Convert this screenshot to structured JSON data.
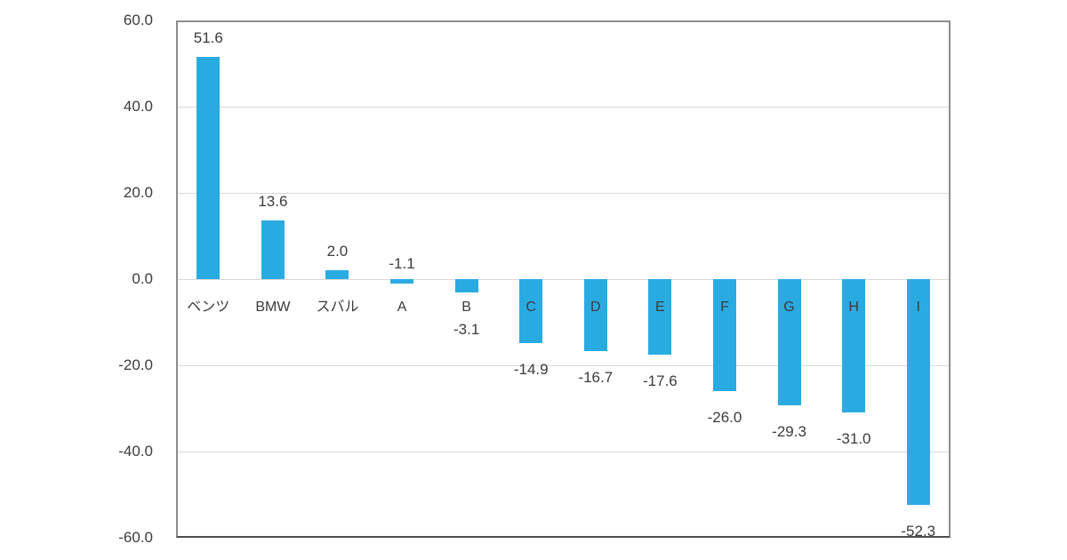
{
  "chart_data": {
    "type": "bar",
    "title": "",
    "categories": [
      "ベンツ",
      "BMW",
      "スバル",
      "A",
      "B",
      "C",
      "D",
      "E",
      "F",
      "G",
      "H",
      "I"
    ],
    "values": [
      51.6,
      13.6,
      2.0,
      -1.1,
      -3.1,
      -14.9,
      -16.7,
      -17.6,
      -26.0,
      -29.3,
      -31.0,
      -52.3
    ],
    "data_labels": [
      "51.6",
      "13.6",
      "2.0",
      "-1.1",
      "-3.1",
      "-14.9",
      "-16.7",
      "-17.6",
      "-26.0",
      "-29.3",
      "-31.0",
      "-52.3"
    ],
    "xlabel": "",
    "ylabel": "",
    "ylim": [
      -60,
      60
    ],
    "ytick_interval": 20,
    "yticks": [
      {
        "value": 60,
        "label": "60.0"
      },
      {
        "value": 40,
        "label": "40.0"
      },
      {
        "value": 20,
        "label": "20.0"
      },
      {
        "value": 0,
        "label": "0.0"
      },
      {
        "value": -20,
        "label": "-20.0"
      },
      {
        "value": -40,
        "label": "-40.0"
      },
      {
        "value": -60,
        "label": "-60.0"
      }
    ],
    "grid": true,
    "legend_position": "none",
    "value_label_above_axis_categories": [
      "A"
    ],
    "colors": {
      "bar": "#29ABE2",
      "text": "#3B3B3B",
      "gridline": "#D9D9D9",
      "plot_border": "#8C8C8C",
      "axis_bottom": "#4D4D4D",
      "background": "#FFFFFF"
    }
  }
}
